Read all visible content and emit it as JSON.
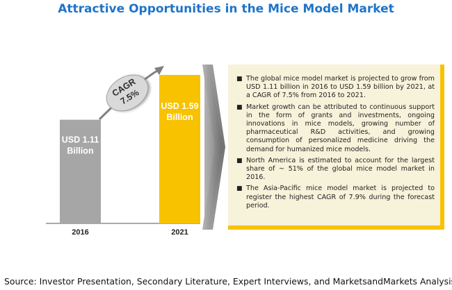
{
  "title": "Attractive Opportunities in the Mice Model Market",
  "chart_data": {
    "type": "bar",
    "categories": [
      "2016",
      "2021"
    ],
    "values": [
      1.11,
      1.59
    ],
    "bar_labels": [
      "USD 1.11 Billion",
      "USD 1.59 Billion"
    ],
    "bar_label_lines": [
      [
        "USD 1.11",
        "Billion"
      ],
      [
        "USD 1.59",
        "Billion"
      ]
    ],
    "cagr_label": [
      "CAGR",
      "7.5%"
    ],
    "colors": {
      "bar_2016": "#a6a6a6",
      "bar_2021": "#f8c200",
      "arrow": "#8a8a8a",
      "cagr_bubble": "#d9d9d9"
    }
  },
  "bullets": [
    "The global mice model market is projected to grow from USD 1.11 billion in 2016 to USD 1.59 billion by 2021, at a CAGR of 7.5% from 2016 to 2021.",
    "Market growth can be attributed to continuous support in the form of grants and investments, ongoing innovations in mice models, growing number of pharmaceutical R&D activities, and growing consumption of personalized medicine driving the demand for humanized mice models.",
    "North America is estimated to account for the largest share of ~ 51% of the global mice model market in 2016.",
    "The Asia-Pacific mice model market is projected to register the highest CAGR of 7.9% during the forecast period."
  ],
  "bullet_symbol": "■",
  "source": "Source: Investor Presentation, Secondary Literature, Expert Interviews, and MarketsandMarkets Analysis"
}
